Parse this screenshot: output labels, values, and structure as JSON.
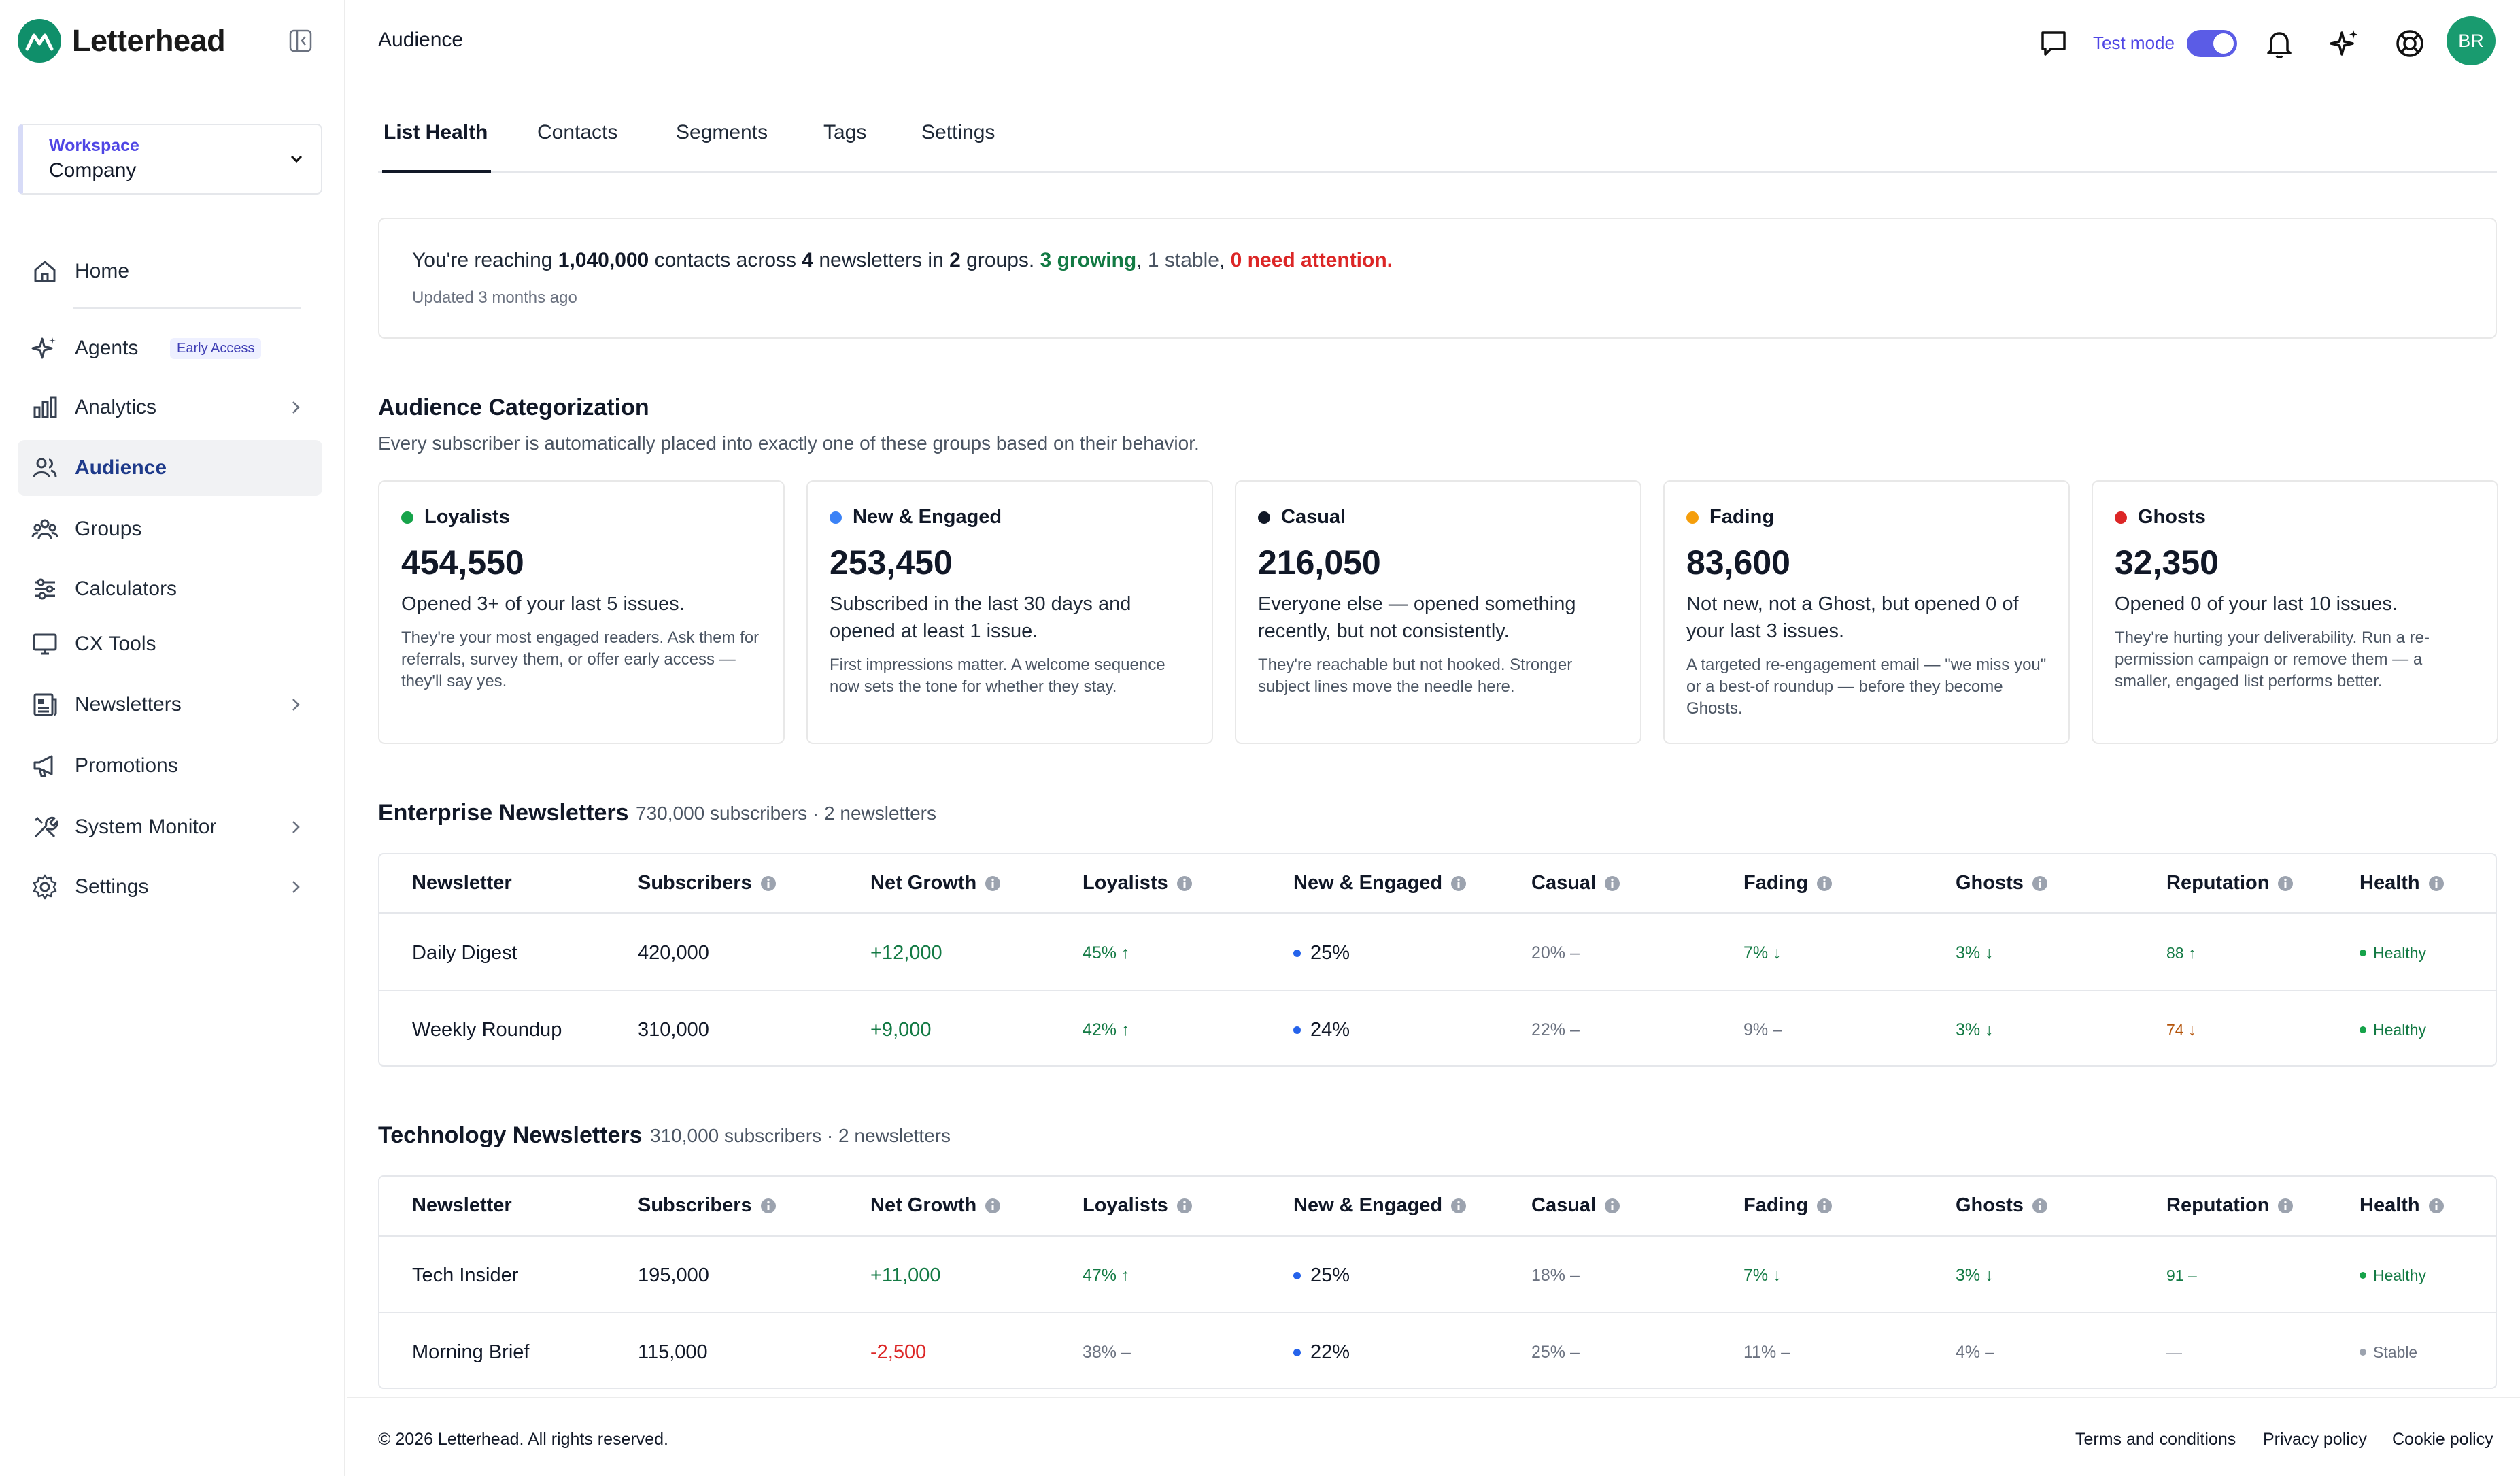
{
  "brand": {
    "name": "Letterhead"
  },
  "workspace": {
    "label": "Workspace",
    "value": "Company"
  },
  "nav": {
    "home": "Home",
    "agents": "Agents",
    "agents_badge": "Early Access",
    "analytics": "Analytics",
    "audience": "Audience",
    "groups": "Groups",
    "calculators": "Calculators",
    "cx_tools": "CX Tools",
    "newsletters": "Newsletters",
    "promotions": "Promotions",
    "system_monitor": "System Monitor",
    "settings": "Settings"
  },
  "topbar": {
    "title": "Audience",
    "test_mode_label": "Test mode",
    "test_mode_on": true,
    "avatar_initials": "BR"
  },
  "tabs": [
    "List Health",
    "Contacts",
    "Segments",
    "Tags",
    "Settings"
  ],
  "summary": {
    "prefix": "You're reaching ",
    "contacts": "1,040,000",
    "mid1": " contacts across ",
    "newsletters": "4",
    "mid2": " newsletters in ",
    "groups": "2",
    "mid3": " groups. ",
    "growing": "3 growing",
    "comma1": ", ",
    "stable": "1 stable",
    "comma2": ", ",
    "attention": "0 need attention",
    "period": ".",
    "updated": "Updated 3 months ago"
  },
  "categorization": {
    "title": "Audience Categorization",
    "subtitle": "Every subscriber is automatically placed into exactly one of these groups based on their behavior.",
    "cards": [
      {
        "name": "Loyalists",
        "value": "454,550",
        "color": "#16a34a",
        "desc": "Opened 3+ of your last 5 issues.",
        "tip": "They're your most engaged readers. Ask them for referrals, survey them, or offer early access — they'll say yes."
      },
      {
        "name": "New & Engaged",
        "value": "253,450",
        "color": "#3b82f6",
        "desc": "Subscribed in the last 30 days and opened at least 1 issue.",
        "tip": "First impressions matter. A welcome sequence now sets the tone for whether they stay."
      },
      {
        "name": "Casual",
        "value": "216,050",
        "color": "#111827",
        "desc": "Everyone else — opened something recently, but not consistently.",
        "tip": "They're reachable but not hooked. Stronger subject lines move the needle here."
      },
      {
        "name": "Fading",
        "value": "83,600",
        "color": "#f59e0b",
        "desc": "Not new, not a Ghost, but opened 0 of your last 3 issues.",
        "tip": "A targeted re-engagement email — \"we miss you\" or a best-of roundup — before they become Ghosts."
      },
      {
        "name": "Ghosts",
        "value": "32,350",
        "color": "#dc2626",
        "desc": "Opened 0 of your last 10 issues.",
        "tip": "They're hurting your deliverability. Run a re-permission campaign or remove them — a smaller, engaged list performs better."
      }
    ]
  },
  "columns": [
    "Newsletter",
    "Subscribers",
    "Net Growth",
    "Loyalists",
    "New & Engaged",
    "Casual",
    "Fading",
    "Ghosts",
    "Reputation",
    "Health"
  ],
  "groups": [
    {
      "title": "Enterprise Newsletters",
      "meta": "730,000 subscribers · 2 newsletters",
      "rows": [
        {
          "name": "Daily Digest",
          "subscribers": "420,000",
          "growth": "+12,000",
          "loyalists": "45% ↑",
          "new_engaged": "25%",
          "casual": "20% –",
          "fading": "7% ↓",
          "ghosts": "3% ↓",
          "reputation": "88 ↑",
          "health": "Healthy"
        },
        {
          "name": "Weekly Roundup",
          "subscribers": "310,000",
          "growth": "+9,000",
          "loyalists": "42% ↑",
          "new_engaged": "24%",
          "casual": "22% –",
          "fading": "9% –",
          "ghosts": "3% ↓",
          "reputation": "74 ↓",
          "health": "Healthy"
        }
      ]
    },
    {
      "title": "Technology Newsletters",
      "meta": "310,000 subscribers · 2 newsletters",
      "rows": [
        {
          "name": "Tech Insider",
          "subscribers": "195,000",
          "growth": "+11,000",
          "loyalists": "47% ↑",
          "new_engaged": "25%",
          "casual": "18% –",
          "fading": "7% ↓",
          "ghosts": "3% ↓",
          "reputation": "91 –",
          "health": "Healthy"
        },
        {
          "name": "Morning Brief",
          "subscribers": "115,000",
          "growth": "-2,500",
          "loyalists": "38% –",
          "new_engaged": "22%",
          "casual": "25% –",
          "fading": "11% –",
          "ghosts": "4% –",
          "reputation": "—",
          "health": "Stable"
        }
      ]
    }
  ],
  "footer": {
    "copyright": "© 2026 Letterhead. All rights reserved.",
    "terms": "Terms and conditions",
    "privacy": "Privacy policy",
    "cookie": "Cookie policy"
  }
}
